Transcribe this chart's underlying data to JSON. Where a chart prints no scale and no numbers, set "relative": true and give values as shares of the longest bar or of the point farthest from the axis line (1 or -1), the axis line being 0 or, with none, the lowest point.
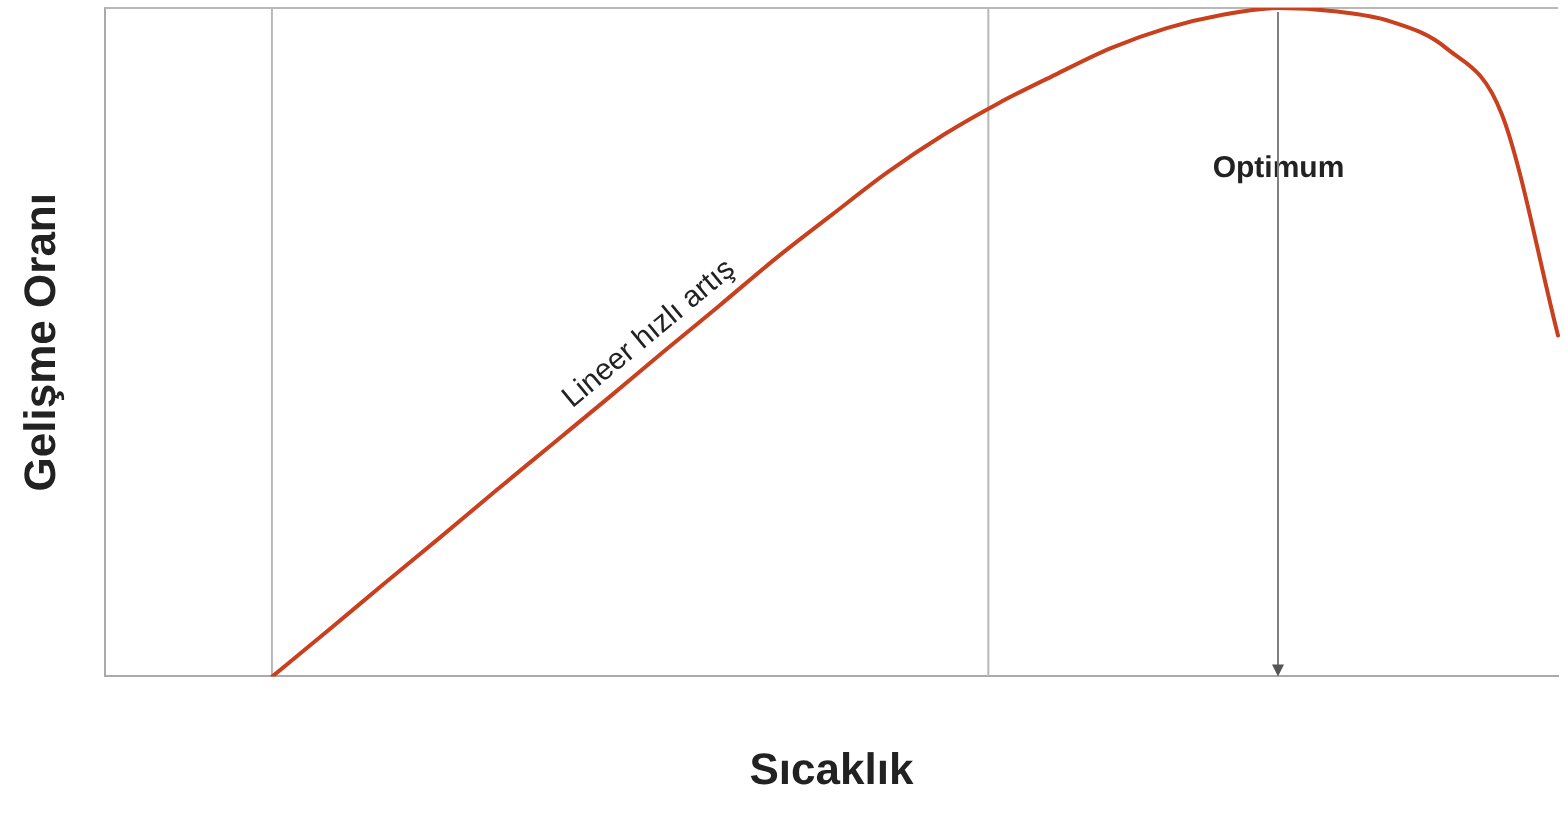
{
  "chart_data": {
    "type": "line",
    "relative": true,
    "xlabel": "Sıcaklık",
    "ylabel": "Gelişme Oranı",
    "categories": [
      null,
      null,
      null,
      null,
      null,
      null,
      null,
      null,
      null,
      null,
      null,
      null,
      null,
      null,
      null,
      null,
      null,
      null,
      null,
      null,
      null,
      null,
      null,
      null,
      null,
      null,
      null
    ],
    "series": [
      {
        "color": "#c8401e",
        "values": [
          null,
          null,
          null,
          0,
          0.069,
          0.139,
          0.208,
          0.278,
          0.347,
          0.416,
          0.486,
          0.555,
          0.625,
          0.69,
          0.754,
          0.81,
          0.858,
          0.9,
          0.94,
          0.97,
          0.99,
          1.0,
          0.995,
          0.98,
          0.94,
          0.84,
          0.51
        ]
      }
    ],
    "annotations": [
      "Lineer hızlı artış",
      "Optimum"
    ],
    "marker": "none",
    "line_style": "solid",
    "grid": false,
    "legend": false
  }
}
